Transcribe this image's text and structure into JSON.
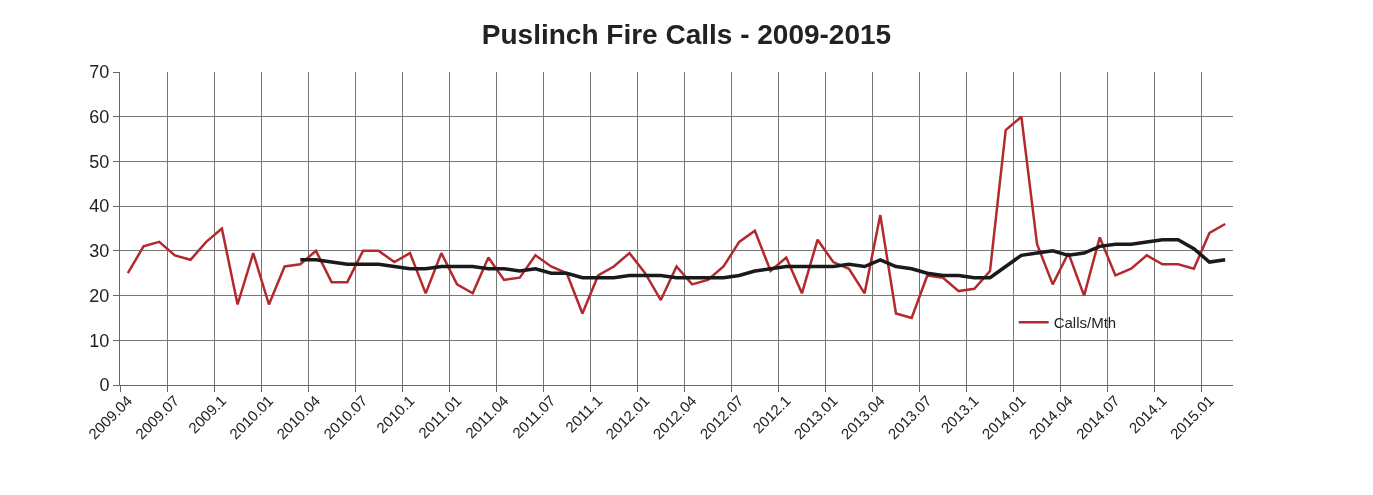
{
  "chart_data": {
    "type": "line",
    "title": "Puslinch Fire Calls - 2009-2015",
    "categories": [
      "2009.04",
      null,
      null,
      "2009.07",
      null,
      null,
      "2009.1",
      null,
      null,
      "2010.01",
      null,
      null,
      "2010.04",
      null,
      null,
      "2010.07",
      null,
      null,
      "2010.1",
      null,
      null,
      "2011.01",
      null,
      null,
      "2011.04",
      null,
      null,
      "2011.07",
      null,
      null,
      "2011.1",
      null,
      null,
      "2012.01",
      null,
      null,
      "2012.04",
      null,
      null,
      "2012.07",
      null,
      null,
      "2012.1",
      null,
      null,
      "2013.01",
      null,
      null,
      "2013.04",
      null,
      null,
      "2013.07",
      null,
      null,
      "2013.1",
      null,
      null,
      "2014.01",
      null,
      null,
      "2014.04",
      null,
      null,
      "2014.07",
      null,
      null,
      "2014.1",
      null,
      null,
      "2015.01",
      null
    ],
    "series": [
      {
        "name": "Calls/Mth",
        "color": "#b22a2e",
        "values": [
          25,
          31,
          32,
          29,
          28,
          32,
          35,
          18,
          29.5,
          18,
          26.5,
          27,
          30,
          23,
          23,
          30,
          30,
          27.5,
          29.5,
          20.5,
          29.5,
          22.5,
          20.5,
          28.5,
          23.5,
          24,
          29,
          26.5,
          25,
          16,
          24.5,
          26.5,
          29.5,
          25,
          19,
          26.5,
          22.5,
          23.5,
          26.5,
          32,
          34.5,
          25.5,
          28.5,
          20.5,
          32.5,
          27.5,
          26,
          20.5,
          38,
          16,
          15,
          24.5,
          24,
          21,
          21.5,
          25.5,
          57,
          60,
          31.5,
          22.5,
          29.5,
          20,
          33,
          24.5,
          26,
          29,
          27,
          27,
          26,
          34,
          36
        ]
      },
      {
        "color": "#1a1a1a",
        "values": [
          null,
          null,
          null,
          null,
          null,
          null,
          null,
          null,
          null,
          null,
          null,
          28,
          28,
          27.5,
          27,
          27,
          27,
          26.5,
          26,
          26,
          26.5,
          26.5,
          26.5,
          26,
          26,
          25.5,
          26,
          25,
          25,
          24,
          24,
          24,
          24.5,
          24.5,
          24.5,
          24,
          24,
          24,
          24,
          24.5,
          25.5,
          26,
          26.5,
          26.5,
          26.5,
          26.5,
          27,
          26.5,
          28,
          26.5,
          26,
          25,
          24.5,
          24.5,
          24,
          24,
          26.5,
          29,
          29.5,
          30,
          29,
          29.5,
          31,
          31.5,
          31.5,
          32,
          32.5,
          32.5,
          30.5,
          27.5,
          28
        ]
      }
    ],
    "ylim": [
      0,
      70
    ],
    "yticks": [
      0,
      10,
      20,
      30,
      40,
      50,
      60,
      70
    ],
    "grid": true,
    "legend": "bottom right",
    "marker": "none",
    "line_style": "solid"
  }
}
